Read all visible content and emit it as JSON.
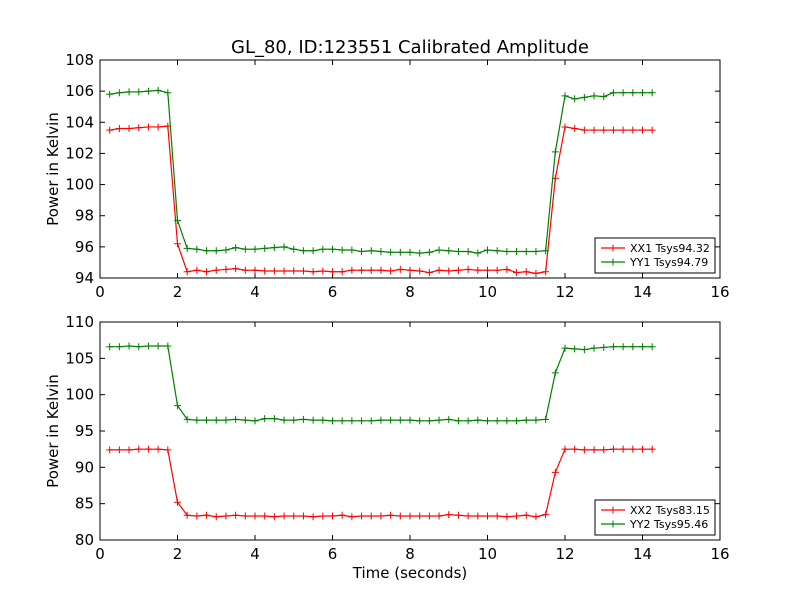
{
  "chart_data": [
    {
      "type": "line",
      "title": "GL_80, ID:123551 Calibrated Amplitude",
      "xlabel": "",
      "ylabel": "Power in Kelvin",
      "xlim": [
        0,
        16
      ],
      "ylim": [
        94,
        108
      ],
      "xticks": [
        0,
        2,
        4,
        6,
        8,
        10,
        12,
        14,
        16
      ],
      "yticks": [
        94,
        96,
        98,
        100,
        102,
        104,
        106,
        108
      ],
      "grid": false,
      "legend_position": "lower-right",
      "x": [
        0.25,
        0.5,
        0.75,
        1.0,
        1.25,
        1.5,
        1.75,
        2.0,
        2.25,
        2.5,
        2.75,
        3.0,
        3.25,
        3.5,
        3.75,
        4.0,
        4.25,
        4.5,
        4.75,
        5.0,
        5.25,
        5.5,
        5.75,
        6.0,
        6.25,
        6.5,
        6.75,
        7.0,
        7.25,
        7.5,
        7.75,
        8.0,
        8.25,
        8.5,
        8.75,
        9.0,
        9.25,
        9.5,
        9.75,
        10.0,
        10.25,
        10.5,
        10.75,
        11.0,
        11.25,
        11.5,
        11.75,
        12.0,
        12.25,
        12.5,
        12.75,
        13.0,
        13.25,
        13.5,
        13.75,
        14.0,
        14.25
      ],
      "series": [
        {
          "name": "XX1 Tsys94.32",
          "color": "#ff0000",
          "values": [
            103.5,
            103.6,
            103.6,
            103.65,
            103.7,
            103.7,
            103.75,
            96.2,
            94.4,
            94.5,
            94.4,
            94.5,
            94.55,
            94.6,
            94.5,
            94.5,
            94.45,
            94.45,
            94.45,
            94.45,
            94.45,
            94.4,
            94.45,
            94.4,
            94.4,
            94.5,
            94.5,
            94.5,
            94.5,
            94.45,
            94.55,
            94.5,
            94.45,
            94.35,
            94.5,
            94.45,
            94.5,
            94.55,
            94.5,
            94.5,
            94.5,
            94.55,
            94.35,
            94.4,
            94.3,
            94.4,
            100.4,
            103.7,
            103.6,
            103.5,
            103.5,
            103.5,
            103.5,
            103.5,
            103.5,
            103.5,
            103.5
          ]
        },
        {
          "name": "YY1 Tsys94.79",
          "color": "#008000",
          "values": [
            105.8,
            105.9,
            105.95,
            105.95,
            106.0,
            106.05,
            105.9,
            97.7,
            95.9,
            95.85,
            95.75,
            95.75,
            95.8,
            95.95,
            95.85,
            95.85,
            95.9,
            95.95,
            96.0,
            95.85,
            95.75,
            95.75,
            95.85,
            95.85,
            95.8,
            95.8,
            95.7,
            95.75,
            95.7,
            95.65,
            95.65,
            95.65,
            95.6,
            95.65,
            95.8,
            95.75,
            95.7,
            95.7,
            95.6,
            95.8,
            95.75,
            95.7,
            95.7,
            95.7,
            95.7,
            95.75,
            102.1,
            105.7,
            105.5,
            105.6,
            105.7,
            105.65,
            105.9,
            105.9,
            105.9,
            105.9,
            105.9
          ]
        }
      ]
    },
    {
      "type": "line",
      "title": "",
      "xlabel": "Time (seconds)",
      "ylabel": "Power in Kelvin",
      "xlim": [
        0,
        16
      ],
      "ylim": [
        80,
        110
      ],
      "xticks": [
        0,
        2,
        4,
        6,
        8,
        10,
        12,
        14,
        16
      ],
      "yticks": [
        80,
        85,
        90,
        95,
        100,
        105,
        110
      ],
      "grid": false,
      "legend_position": "lower-right",
      "x": [
        0.25,
        0.5,
        0.75,
        1.0,
        1.25,
        1.5,
        1.75,
        2.0,
        2.25,
        2.5,
        2.75,
        3.0,
        3.25,
        3.5,
        3.75,
        4.0,
        4.25,
        4.5,
        4.75,
        5.0,
        5.25,
        5.5,
        5.75,
        6.0,
        6.25,
        6.5,
        6.75,
        7.0,
        7.25,
        7.5,
        7.75,
        8.0,
        8.25,
        8.5,
        8.75,
        9.0,
        9.25,
        9.5,
        9.75,
        10.0,
        10.25,
        10.5,
        10.75,
        11.0,
        11.25,
        11.5,
        11.75,
        12.0,
        12.25,
        12.5,
        12.75,
        13.0,
        13.25,
        13.5,
        13.75,
        14.0,
        14.25
      ],
      "series": [
        {
          "name": "XX2 Tsys83.15",
          "color": "#ff0000",
          "values": [
            92.4,
            92.4,
            92.4,
            92.5,
            92.5,
            92.5,
            92.4,
            85.2,
            83.4,
            83.3,
            83.4,
            83.2,
            83.3,
            83.4,
            83.3,
            83.3,
            83.3,
            83.2,
            83.3,
            83.3,
            83.3,
            83.2,
            83.3,
            83.3,
            83.4,
            83.2,
            83.3,
            83.3,
            83.3,
            83.4,
            83.3,
            83.3,
            83.3,
            83.3,
            83.3,
            83.5,
            83.4,
            83.3,
            83.3,
            83.3,
            83.3,
            83.2,
            83.3,
            83.4,
            83.2,
            83.5,
            89.3,
            92.5,
            92.5,
            92.4,
            92.4,
            92.4,
            92.5,
            92.5,
            92.5,
            92.5,
            92.5
          ]
        },
        {
          "name": "YY2 Tsys95.46",
          "color": "#008000",
          "values": [
            106.6,
            106.6,
            106.7,
            106.6,
            106.7,
            106.7,
            106.7,
            98.5,
            96.6,
            96.5,
            96.5,
            96.5,
            96.5,
            96.6,
            96.5,
            96.4,
            96.7,
            96.7,
            96.5,
            96.5,
            96.6,
            96.5,
            96.5,
            96.4,
            96.4,
            96.4,
            96.4,
            96.4,
            96.5,
            96.5,
            96.5,
            96.5,
            96.4,
            96.4,
            96.5,
            96.6,
            96.4,
            96.4,
            96.5,
            96.4,
            96.4,
            96.4,
            96.4,
            96.5,
            96.5,
            96.6,
            103.0,
            106.4,
            106.3,
            106.2,
            106.4,
            106.5,
            106.6,
            106.6,
            106.6,
            106.6,
            106.6
          ]
        }
      ]
    }
  ]
}
